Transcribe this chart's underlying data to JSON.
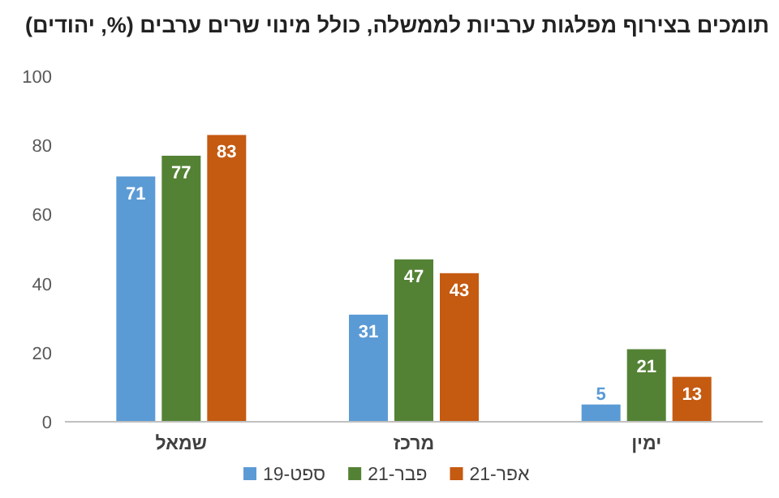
{
  "chart_data": {
    "type": "bar",
    "title": "תומכים בצירוף מפלגות ערביות לממשלה, כולל מינוי שרים ערבים (%, יהודים)",
    "categories": [
      "שמאל",
      "מרכז",
      "ימין"
    ],
    "series": [
      {
        "name": "ספט-19",
        "color": "#5b9bd5",
        "values": [
          71,
          31,
          5
        ]
      },
      {
        "name": "פבר-21",
        "color": "#548235",
        "values": [
          77,
          47,
          21
        ]
      },
      {
        "name": "אפר-21",
        "color": "#c55a11",
        "values": [
          83,
          43,
          13
        ]
      }
    ],
    "ylim": [
      0,
      100
    ],
    "yticks": [
      0,
      20,
      40,
      60,
      80,
      100
    ],
    "grid": false,
    "legend": "bottom",
    "data_labels": true
  }
}
